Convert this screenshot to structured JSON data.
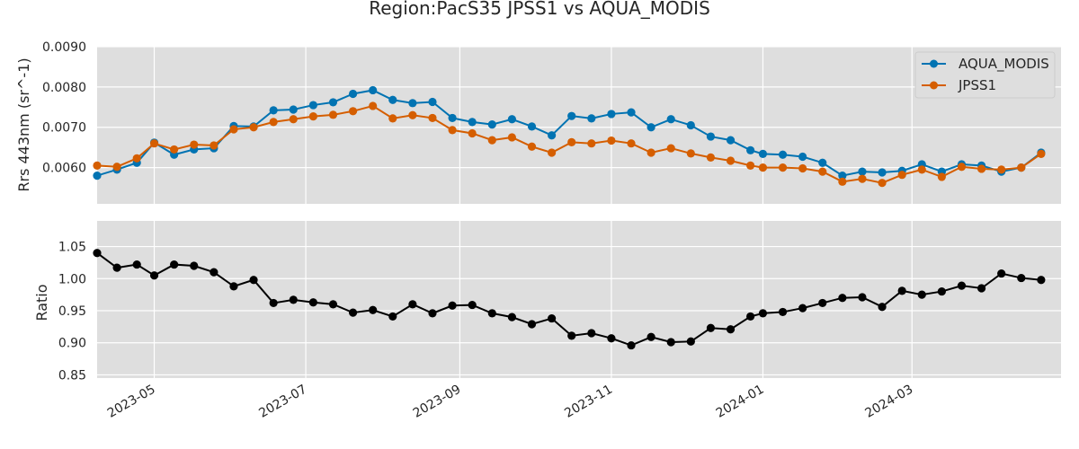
{
  "chart_data": {
    "type": "line",
    "title": "Region:PacS35 JPSS1 vs AQUA_MODIS",
    "colors": {
      "aqua": "#0173b2",
      "jpss": "#d55e00",
      "ratio": "#000000",
      "background": "#dedede",
      "grid": "#ffffff"
    },
    "x_ticks": [
      "2023-05",
      "2023-07",
      "2023-09",
      "2023-11",
      "2024-01",
      "2024-03"
    ],
    "x_tick_dates": [
      "2023-05-01",
      "2023-07-01",
      "2023-09-01",
      "2023-11-01",
      "2024-01-01",
      "2024-03-01"
    ],
    "xlim": [
      "2023-04-08",
      "2024-04-30"
    ],
    "x": [
      "2023-04-08",
      "2023-04-16",
      "2023-04-24",
      "2023-05-01",
      "2023-05-09",
      "2023-05-17",
      "2023-05-25",
      "2023-06-02",
      "2023-06-10",
      "2023-06-18",
      "2023-06-26",
      "2023-07-04",
      "2023-07-12",
      "2023-07-20",
      "2023-07-28",
      "2023-08-05",
      "2023-08-13",
      "2023-08-21",
      "2023-08-29",
      "2023-09-06",
      "2023-09-14",
      "2023-09-22",
      "2023-09-30",
      "2023-10-08",
      "2023-10-16",
      "2023-10-24",
      "2023-11-01",
      "2023-11-09",
      "2023-11-17",
      "2023-11-25",
      "2023-12-03",
      "2023-12-11",
      "2023-12-19",
      "2023-12-27",
      "2024-01-01",
      "2024-01-09",
      "2024-01-17",
      "2024-01-25",
      "2024-02-02",
      "2024-02-10",
      "2024-02-18",
      "2024-02-26",
      "2024-03-05",
      "2024-03-13",
      "2024-03-21",
      "2024-03-29",
      "2024-04-06",
      "2024-04-14",
      "2024-04-22"
    ],
    "panels": [
      {
        "ylabel": "Rrs 443nm (sr^-1)",
        "ylim": [
          0.0051,
          0.009
        ],
        "y_ticks": [
          "0.0060",
          "0.0070",
          "0.0080",
          "0.0090"
        ],
        "y_tick_values": [
          0.006,
          0.007,
          0.008,
          0.009
        ],
        "legend": "top-right",
        "series": [
          {
            "name": "AQUA_MODIS",
            "values": [
              0.0058,
              0.00595,
              0.00612,
              0.00662,
              0.00632,
              0.00645,
              0.00648,
              0.00703,
              0.00702,
              0.00742,
              0.00744,
              0.00755,
              0.00762,
              0.00783,
              0.00792,
              0.00768,
              0.0076,
              0.00763,
              0.00723,
              0.00713,
              0.00707,
              0.0072,
              0.00702,
              0.0068,
              0.00728,
              0.00722,
              0.00733,
              0.00737,
              0.007,
              0.0072,
              0.00705,
              0.00677,
              0.00668,
              0.00643,
              0.00634,
              0.00632,
              0.00627,
              0.00612,
              0.0058,
              0.0059,
              0.00588,
              0.00592,
              0.00608,
              0.0059,
              0.00608,
              0.00605,
              0.0059,
              0.006,
              0.00637
            ]
          },
          {
            "name": "JPSS1",
            "values": [
              0.00605,
              0.00602,
              0.00623,
              0.0066,
              0.00645,
              0.00657,
              0.00655,
              0.00695,
              0.007,
              0.00713,
              0.0072,
              0.00727,
              0.00731,
              0.0074,
              0.00753,
              0.00722,
              0.0073,
              0.00723,
              0.00693,
              0.00685,
              0.00668,
              0.00675,
              0.00652,
              0.00637,
              0.00663,
              0.0066,
              0.00667,
              0.0066,
              0.00637,
              0.00648,
              0.00635,
              0.00625,
              0.00617,
              0.00605,
              0.006,
              0.006,
              0.00598,
              0.0059,
              0.00565,
              0.00572,
              0.00562,
              0.00582,
              0.00595,
              0.00577,
              0.00602,
              0.00597,
              0.00595,
              0.006,
              0.00634
            ]
          }
        ]
      },
      {
        "ylabel": "Ratio",
        "ylim": [
          0.845,
          1.09
        ],
        "y_ticks": [
          "0.85",
          "0.90",
          "0.95",
          "1.00",
          "1.05"
        ],
        "y_tick_values": [
          0.85,
          0.9,
          0.95,
          1.0,
          1.05
        ],
        "series": [
          {
            "values": [
              1.04,
              1.017,
              1.022,
              1.005,
              1.022,
              1.02,
              1.01,
              0.988,
              0.998,
              0.962,
              0.967,
              0.963,
              0.96,
              0.947,
              0.951,
              0.941,
              0.96,
              0.946,
              0.958,
              0.959,
              0.946,
              0.94,
              0.929,
              0.938,
              0.911,
              0.915,
              0.907,
              0.896,
              0.909,
              0.901,
              0.902,
              0.923,
              0.921,
              0.941,
              0.946,
              0.948,
              0.954,
              0.962,
              0.97,
              0.971,
              0.956,
              0.981,
              0.975,
              0.98,
              0.989,
              0.985,
              1.008,
              1.001,
              0.998
            ]
          }
        ]
      }
    ]
  }
}
